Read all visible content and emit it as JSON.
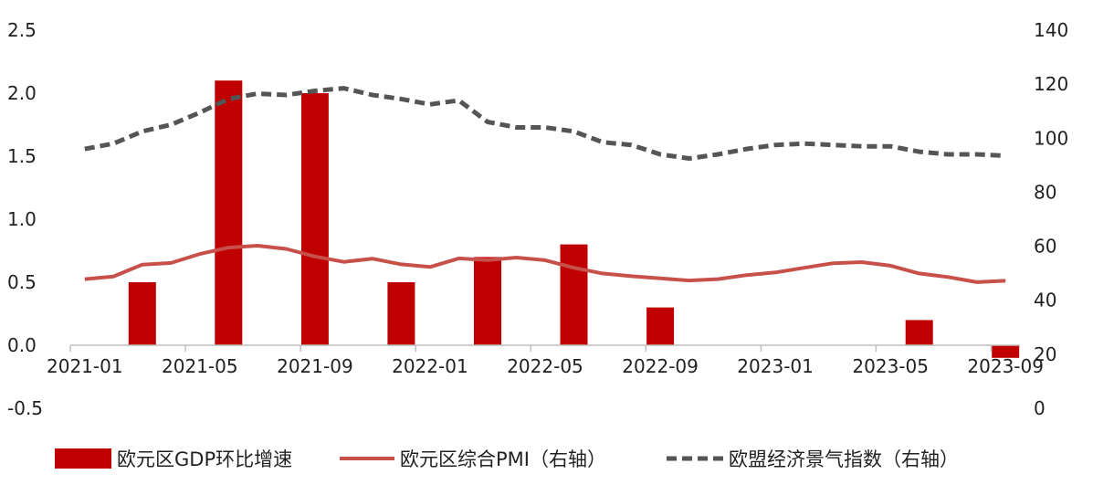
{
  "chart_data": {
    "type": "bar+line",
    "x": [
      "2021-01",
      "2021-02",
      "2021-03",
      "2021-04",
      "2021-05",
      "2021-06",
      "2021-07",
      "2021-08",
      "2021-09",
      "2021-10",
      "2021-11",
      "2021-12",
      "2022-01",
      "2022-02",
      "2022-03",
      "2022-04",
      "2022-05",
      "2022-06",
      "2022-07",
      "2022-08",
      "2022-09",
      "2022-10",
      "2022-11",
      "2022-12",
      "2023-01",
      "2023-02",
      "2023-03",
      "2023-04",
      "2023-05",
      "2023-06",
      "2023-07",
      "2023-08",
      "2023-09"
    ],
    "x_tick_labels": [
      "2021-01",
      "2021-05",
      "2021-09",
      "2022-01",
      "2022-05",
      "2022-09",
      "2023-01",
      "2023-05",
      "2023-09"
    ],
    "left_axis": {
      "ylim": [
        -0.5,
        2.5
      ],
      "tick_labels": [
        "-0.5",
        "0.0",
        "0.5",
        "1.0",
        "1.5",
        "2.0",
        "2.5"
      ]
    },
    "right_axis": {
      "ylim": [
        0,
        140
      ],
      "tick_labels": [
        "0",
        "20",
        "40",
        "60",
        "80",
        "100",
        "120",
        "140"
      ]
    },
    "series": [
      {
        "name": "欧元区GDP环比增速",
        "type": "bar",
        "axis": "left",
        "color": "#c00000",
        "points": [
          {
            "x": "2021-03",
            "y": 0.5
          },
          {
            "x": "2021-06",
            "y": 2.1
          },
          {
            "x": "2021-09",
            "y": 2.0
          },
          {
            "x": "2021-12",
            "y": 0.5
          },
          {
            "x": "2022-03",
            "y": 0.7
          },
          {
            "x": "2022-06",
            "y": 0.8
          },
          {
            "x": "2022-09",
            "y": 0.3
          },
          {
            "x": "2022-12",
            "y": 0.0
          },
          {
            "x": "2023-03",
            "y": 0.0
          },
          {
            "x": "2023-06",
            "y": 0.2
          },
          {
            "x": "2023-09",
            "y": -0.1
          }
        ]
      },
      {
        "name": "欧元区综合PMI（右轴）",
        "type": "line",
        "axis": "right",
        "color": "#c8504b",
        "values": [
          47.8,
          48.8,
          53.2,
          53.8,
          57.1,
          59.5,
          60.2,
          59.0,
          56.2,
          54.2,
          55.4,
          53.3,
          52.3,
          55.5,
          54.9,
          55.8,
          54.8,
          52.0,
          49.9,
          48.9,
          48.1,
          47.3,
          47.8,
          49.3,
          50.3,
          52.0,
          53.7,
          54.1,
          52.8,
          49.9,
          48.6,
          46.7,
          47.2
        ]
      },
      {
        "name": "欧盟经济景气指数（右轴）",
        "type": "line",
        "style": "dashed",
        "axis": "right",
        "color": "#555555",
        "values": [
          96.0,
          98.0,
          102.5,
          105.0,
          109.5,
          114.5,
          116.5,
          116.0,
          117.5,
          118.5,
          116.0,
          114.5,
          112.5,
          114.0,
          106.0,
          104.0,
          104.0,
          102.5,
          98.5,
          97.5,
          94.0,
          92.5,
          94.0,
          96.0,
          97.5,
          98.0,
          97.5,
          97.0,
          97.0,
          95.0,
          94.0,
          94.0,
          93.5
        ]
      }
    ],
    "legend": {
      "placement": "bottom",
      "entries": [
        "欧元区GDP环比增速",
        "欧元区综合PMI（右轴）",
        "欧盟经济景气指数（右轴）"
      ]
    }
  }
}
